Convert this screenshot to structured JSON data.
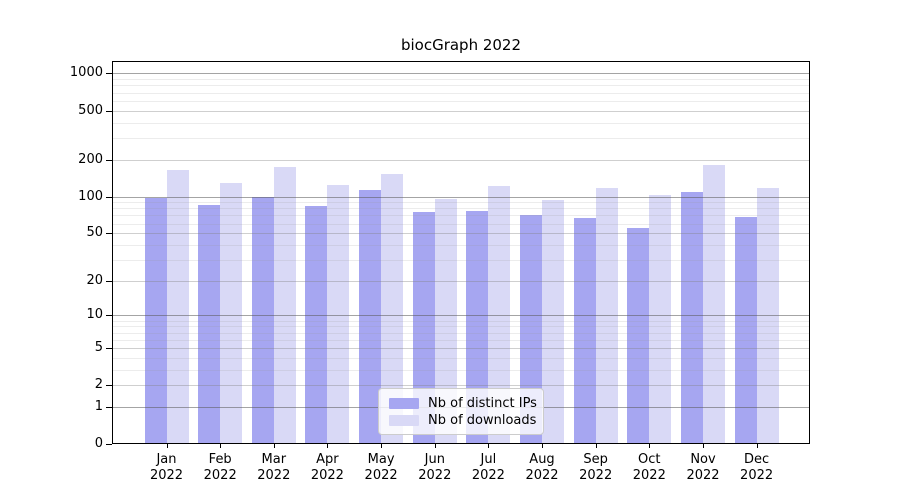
{
  "chart_data": {
    "type": "bar",
    "title": "biocGraph 2022",
    "categories": [
      "Jan 2022",
      "Feb 2022",
      "Mar 2022",
      "Apr 2022",
      "May 2022",
      "Jun 2022",
      "Jul 2022",
      "Aug 2022",
      "Sep 2022",
      "Oct 2022",
      "Nov 2022",
      "Dec 2022"
    ],
    "series": [
      {
        "name": "Nb of distinct IPs",
        "color": "#a6a6f1",
        "values": [
          98,
          86,
          99,
          83,
          113,
          75,
          76,
          70,
          67,
          55,
          109,
          68
        ]
      },
      {
        "name": "Nb of downloads",
        "color": "#d9d9f6",
        "values": [
          165,
          129,
          173,
          125,
          152,
          96,
          123,
          93,
          117,
          103,
          181,
          118
        ]
      }
    ],
    "y_axis": {
      "scale": "log10(value+1)",
      "ticks": [
        0,
        1,
        2,
        5,
        10,
        20,
        50,
        100,
        200,
        500,
        1000
      ],
      "tick_labels": [
        "0",
        "1",
        "2",
        "5",
        "10",
        "20",
        "50",
        "100",
        "200",
        "500",
        "1000"
      ],
      "decade_gridlines": [
        1,
        10,
        100,
        1000
      ],
      "minor_gridlines": [
        3,
        4,
        6,
        7,
        8,
        9,
        30,
        40,
        60,
        70,
        80,
        90,
        300,
        400,
        600,
        700,
        800,
        900
      ],
      "range_u_max": 3.1012,
      "grid": true
    },
    "x_axis": {
      "tick_count": 12
    },
    "legend": {
      "position": "inside-bottom-center",
      "entries": [
        "Nb of distinct IPs",
        "Nb of downloads"
      ]
    }
  }
}
